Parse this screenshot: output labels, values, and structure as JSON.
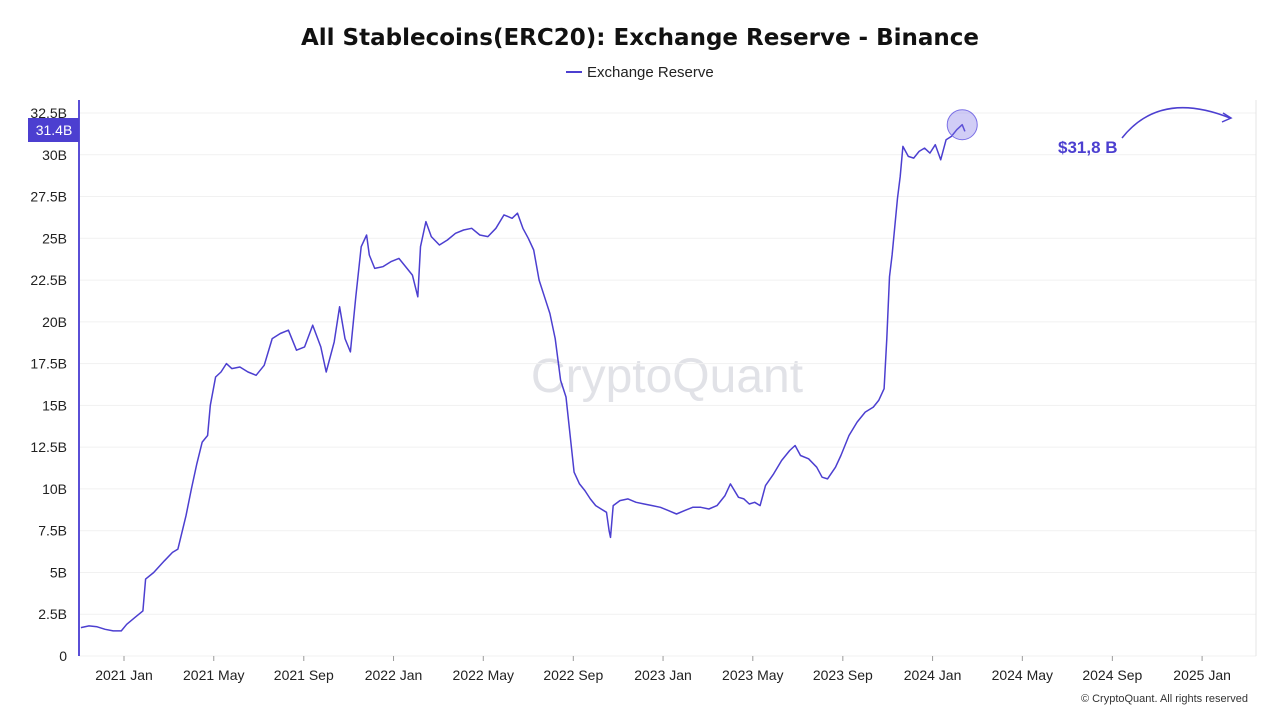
{
  "colors": {
    "series": "#4c3fd0",
    "axis": "#5a4fd6",
    "badge": "#4c3fd0",
    "highlight": "#7b70e6"
  },
  "chart_data": {
    "type": "line",
    "title": "All Stablecoins(ERC20): Exchange Reserve - Binance",
    "legend": [
      "Exchange Reserve"
    ],
    "legend_position": "top-center",
    "xlabel": "",
    "ylabel": "",
    "ylim": [
      0,
      32.5
    ],
    "y_unit": "B",
    "y_ticks": [
      {
        "value": 0,
        "label": "0"
      },
      {
        "value": 2.5,
        "label": "2.5B"
      },
      {
        "value": 5,
        "label": "5B"
      },
      {
        "value": 7.5,
        "label": "7.5B"
      },
      {
        "value": 10,
        "label": "10B"
      },
      {
        "value": 12.5,
        "label": "12.5B"
      },
      {
        "value": 15,
        "label": "15B"
      },
      {
        "value": 17.5,
        "label": "17.5B"
      },
      {
        "value": 20,
        "label": "20B"
      },
      {
        "value": 22.5,
        "label": "22.5B"
      },
      {
        "value": 25,
        "label": "25B"
      },
      {
        "value": 27.5,
        "label": "27.5B"
      },
      {
        "value": 30,
        "label": "30B"
      },
      {
        "value": 32.5,
        "label": "32.5B"
      }
    ],
    "xlim": [
      2020.833,
      2025.2
    ],
    "x_ticks": [
      {
        "value": 2021.0,
        "label": "2021 Jan"
      },
      {
        "value": 2021.333,
        "label": "2021 May"
      },
      {
        "value": 2021.667,
        "label": "2021 Sep"
      },
      {
        "value": 2022.0,
        "label": "2022 Jan"
      },
      {
        "value": 2022.333,
        "label": "2022 May"
      },
      {
        "value": 2022.667,
        "label": "2022 Sep"
      },
      {
        "value": 2023.0,
        "label": "2023 Jan"
      },
      {
        "value": 2023.333,
        "label": "2023 May"
      },
      {
        "value": 2023.667,
        "label": "2023 Sep"
      },
      {
        "value": 2024.0,
        "label": "2024 Jan"
      },
      {
        "value": 2024.333,
        "label": "2024 May"
      },
      {
        "value": 2024.667,
        "label": "2024 Sep"
      },
      {
        "value": 2025.0,
        "label": "2025 Jan"
      }
    ],
    "grid": true,
    "series": [
      {
        "name": "Exchange Reserve",
        "points": [
          [
            2020.84,
            1.7
          ],
          [
            2020.87,
            1.8
          ],
          [
            2020.9,
            1.75
          ],
          [
            2020.93,
            1.6
          ],
          [
            2020.96,
            1.5
          ],
          [
            2020.99,
            1.5
          ],
          [
            2021.01,
            1.9
          ],
          [
            2021.04,
            2.3
          ],
          [
            2021.07,
            2.7
          ],
          [
            2021.08,
            4.6
          ],
          [
            2021.11,
            5.0
          ],
          [
            2021.15,
            5.7
          ],
          [
            2021.18,
            6.2
          ],
          [
            2021.2,
            6.4
          ],
          [
            2021.23,
            8.4
          ],
          [
            2021.25,
            10.0
          ],
          [
            2021.27,
            11.5
          ],
          [
            2021.29,
            12.8
          ],
          [
            2021.31,
            13.2
          ],
          [
            2021.32,
            15.0
          ],
          [
            2021.34,
            16.7
          ],
          [
            2021.36,
            17.0
          ],
          [
            2021.38,
            17.5
          ],
          [
            2021.4,
            17.2
          ],
          [
            2021.43,
            17.3
          ],
          [
            2021.46,
            17.0
          ],
          [
            2021.49,
            16.8
          ],
          [
            2021.52,
            17.4
          ],
          [
            2021.55,
            19.0
          ],
          [
            2021.58,
            19.3
          ],
          [
            2021.61,
            19.5
          ],
          [
            2021.64,
            18.3
          ],
          [
            2021.67,
            18.5
          ],
          [
            2021.7,
            19.8
          ],
          [
            2021.73,
            18.5
          ],
          [
            2021.75,
            17.0
          ],
          [
            2021.78,
            18.8
          ],
          [
            2021.8,
            20.9
          ],
          [
            2021.82,
            19.0
          ],
          [
            2021.84,
            18.2
          ],
          [
            2021.86,
            21.5
          ],
          [
            2021.88,
            24.5
          ],
          [
            2021.9,
            25.2
          ],
          [
            2021.91,
            24.0
          ],
          [
            2021.93,
            23.2
          ],
          [
            2021.96,
            23.3
          ],
          [
            2021.99,
            23.6
          ],
          [
            2022.02,
            23.8
          ],
          [
            2022.05,
            23.2
          ],
          [
            2022.07,
            22.8
          ],
          [
            2022.09,
            21.5
          ],
          [
            2022.1,
            24.5
          ],
          [
            2022.12,
            26.0
          ],
          [
            2022.14,
            25.1
          ],
          [
            2022.17,
            24.6
          ],
          [
            2022.2,
            24.9
          ],
          [
            2022.23,
            25.3
          ],
          [
            2022.26,
            25.5
          ],
          [
            2022.29,
            25.6
          ],
          [
            2022.32,
            25.2
          ],
          [
            2022.35,
            25.1
          ],
          [
            2022.38,
            25.6
          ],
          [
            2022.41,
            26.4
          ],
          [
            2022.44,
            26.2
          ],
          [
            2022.46,
            26.5
          ],
          [
            2022.48,
            25.6
          ],
          [
            2022.5,
            25.0
          ],
          [
            2022.52,
            24.3
          ],
          [
            2022.54,
            22.5
          ],
          [
            2022.56,
            21.5
          ],
          [
            2022.58,
            20.5
          ],
          [
            2022.6,
            19.0
          ],
          [
            2022.62,
            16.5
          ],
          [
            2022.64,
            15.5
          ],
          [
            2022.66,
            12.5
          ],
          [
            2022.67,
            11.0
          ],
          [
            2022.69,
            10.3
          ],
          [
            2022.71,
            9.9
          ],
          [
            2022.73,
            9.4
          ],
          [
            2022.75,
            9.0
          ],
          [
            2022.77,
            8.8
          ],
          [
            2022.79,
            8.6
          ],
          [
            2022.8,
            7.5
          ],
          [
            2022.805,
            7.1
          ],
          [
            2022.815,
            9.0
          ],
          [
            2022.84,
            9.3
          ],
          [
            2022.87,
            9.4
          ],
          [
            2022.9,
            9.2
          ],
          [
            2022.93,
            9.1
          ],
          [
            2022.96,
            9.0
          ],
          [
            2022.99,
            8.9
          ],
          [
            2023.02,
            8.7
          ],
          [
            2023.05,
            8.5
          ],
          [
            2023.08,
            8.7
          ],
          [
            2023.11,
            8.9
          ],
          [
            2023.14,
            8.9
          ],
          [
            2023.17,
            8.8
          ],
          [
            2023.2,
            9.0
          ],
          [
            2023.23,
            9.6
          ],
          [
            2023.25,
            10.3
          ],
          [
            2023.28,
            9.5
          ],
          [
            2023.3,
            9.4
          ],
          [
            2023.32,
            9.1
          ],
          [
            2023.34,
            9.2
          ],
          [
            2023.36,
            9.0
          ],
          [
            2023.38,
            10.2
          ],
          [
            2023.41,
            10.9
          ],
          [
            2023.44,
            11.7
          ],
          [
            2023.47,
            12.3
          ],
          [
            2023.49,
            12.6
          ],
          [
            2023.51,
            12.0
          ],
          [
            2023.54,
            11.8
          ],
          [
            2023.57,
            11.3
          ],
          [
            2023.59,
            10.7
          ],
          [
            2023.61,
            10.6
          ],
          [
            2023.64,
            11.3
          ],
          [
            2023.66,
            12.0
          ],
          [
            2023.69,
            13.2
          ],
          [
            2023.72,
            14.0
          ],
          [
            2023.75,
            14.6
          ],
          [
            2023.78,
            14.9
          ],
          [
            2023.8,
            15.3
          ],
          [
            2023.82,
            16.0
          ],
          [
            2023.83,
            19.0
          ],
          [
            2023.84,
            22.7
          ],
          [
            2023.85,
            24.0
          ],
          [
            2023.86,
            25.7
          ],
          [
            2023.87,
            27.4
          ],
          [
            2023.88,
            28.7
          ],
          [
            2023.89,
            30.5
          ],
          [
            2023.91,
            29.9
          ],
          [
            2023.93,
            29.8
          ],
          [
            2023.95,
            30.2
          ],
          [
            2023.97,
            30.4
          ],
          [
            2023.99,
            30.1
          ],
          [
            2024.01,
            30.6
          ],
          [
            2024.03,
            29.7
          ],
          [
            2024.05,
            30.9
          ],
          [
            2024.07,
            31.1
          ],
          [
            2024.09,
            31.5
          ],
          [
            2024.11,
            31.8
          ],
          [
            2024.12,
            31.4
          ]
        ]
      }
    ],
    "annotations": [
      {
        "text": "$31,8 B",
        "x": 2024.11,
        "y": 31.8
      }
    ],
    "last_value_badge": "31.4B",
    "watermark": "CryptoQuant",
    "copyright": "© CryptoQuant. All rights reserved"
  }
}
